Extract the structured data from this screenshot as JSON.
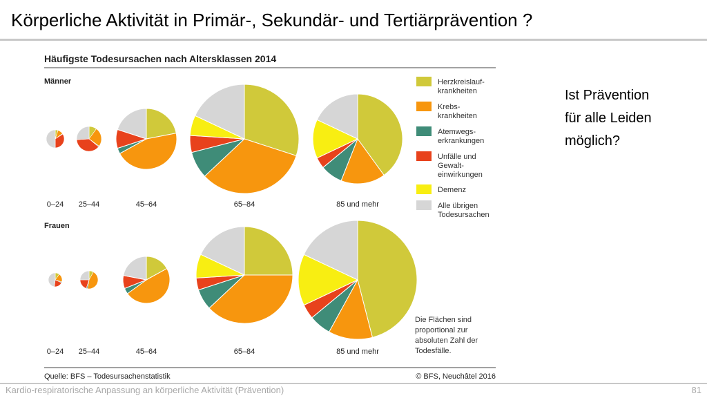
{
  "slide": {
    "title": "Körperliche Aktivität in Primär-, Sekundär- und Tertiärprävention ?",
    "side_text": [
      "Ist Prävention",
      "für alle Leiden",
      "möglich?"
    ],
    "footer_left": "Kardio-respiratorische Anpassung an körperliche Aktivität (Prävention)",
    "page_number": "81"
  },
  "chart_data": {
    "type": "pie",
    "title": "Häufigste Todesursachen nach Altersklassen 2014",
    "source": "Quelle: BFS – Todesursachenstatistik",
    "copyright": "© BFS, Neuchâtel 2016",
    "note": [
      "Die Flächen sind",
      "proportional zur",
      "absoluten Zahl der",
      "Todesfälle."
    ],
    "categories": [
      {
        "key": "herz",
        "label": [
          "Herzkreislauf-",
          "krankheiten"
        ],
        "color": "#d0c93a"
      },
      {
        "key": "krebs",
        "label": [
          "Krebs-",
          "krankheiten"
        ],
        "color": "#f7960e"
      },
      {
        "key": "atem",
        "label": [
          "Atemwegs-",
          "erkrankungen"
        ],
        "color": "#3f8c78"
      },
      {
        "key": "unfall",
        "label": [
          "Unfälle und",
          "Gewalt-",
          "einwirkungen"
        ],
        "color": "#e8421c"
      },
      {
        "key": "demenz",
        "label": [
          "Demenz"
        ],
        "color": "#f8ee12"
      },
      {
        "key": "uebrige",
        "label": [
          "Alle übrigen",
          "Todesursachen"
        ],
        "color": "#d6d6d6"
      }
    ],
    "groups": [
      {
        "name": "Männer",
        "pies": [
          {
            "age": "0–24",
            "values": {
              "herz": 5,
              "krebs": 10,
              "atem": 1,
              "unfall": 34,
              "demenz": 0,
              "uebrige": 50
            }
          },
          {
            "age": "25–44",
            "values": {
              "herz": 10,
              "krebs": 25,
              "atem": 1,
              "unfall": 38,
              "demenz": 0,
              "uebrige": 26
            }
          },
          {
            "age": "45–64",
            "values": {
              "herz": 22,
              "krebs": 45,
              "atem": 3,
              "unfall": 10,
              "demenz": 0,
              "uebrige": 20
            }
          },
          {
            "age": "65–84",
            "values": {
              "herz": 30,
              "krebs": 33,
              "atem": 8,
              "unfall": 5,
              "demenz": 6,
              "uebrige": 18
            }
          },
          {
            "age": "85 und mehr",
            "values": {
              "herz": 40,
              "krebs": 16,
              "atem": 8,
              "unfall": 4,
              "demenz": 14,
              "uebrige": 18
            }
          }
        ]
      },
      {
        "name": "Frauen",
        "pies": [
          {
            "age": "0–24",
            "values": {
              "herz": 10,
              "krebs": 20,
              "atem": 2,
              "unfall": 20,
              "demenz": 0,
              "uebrige": 48
            }
          },
          {
            "age": "25–44",
            "values": {
              "herz": 8,
              "krebs": 45,
              "atem": 2,
              "unfall": 20,
              "demenz": 0,
              "uebrige": 25
            }
          },
          {
            "age": "45–64",
            "values": {
              "herz": 17,
              "krebs": 48,
              "atem": 4,
              "unfall": 9,
              "demenz": 0,
              "uebrige": 22
            }
          },
          {
            "age": "65–84",
            "values": {
              "herz": 25,
              "krebs": 38,
              "atem": 7,
              "unfall": 4,
              "demenz": 8,
              "uebrige": 18
            }
          },
          {
            "age": "85 und mehr",
            "values": {
              "herz": 46,
              "krebs": 12,
              "atem": 6,
              "unfall": 4,
              "demenz": 14,
              "uebrige": 18
            }
          }
        ]
      }
    ]
  }
}
